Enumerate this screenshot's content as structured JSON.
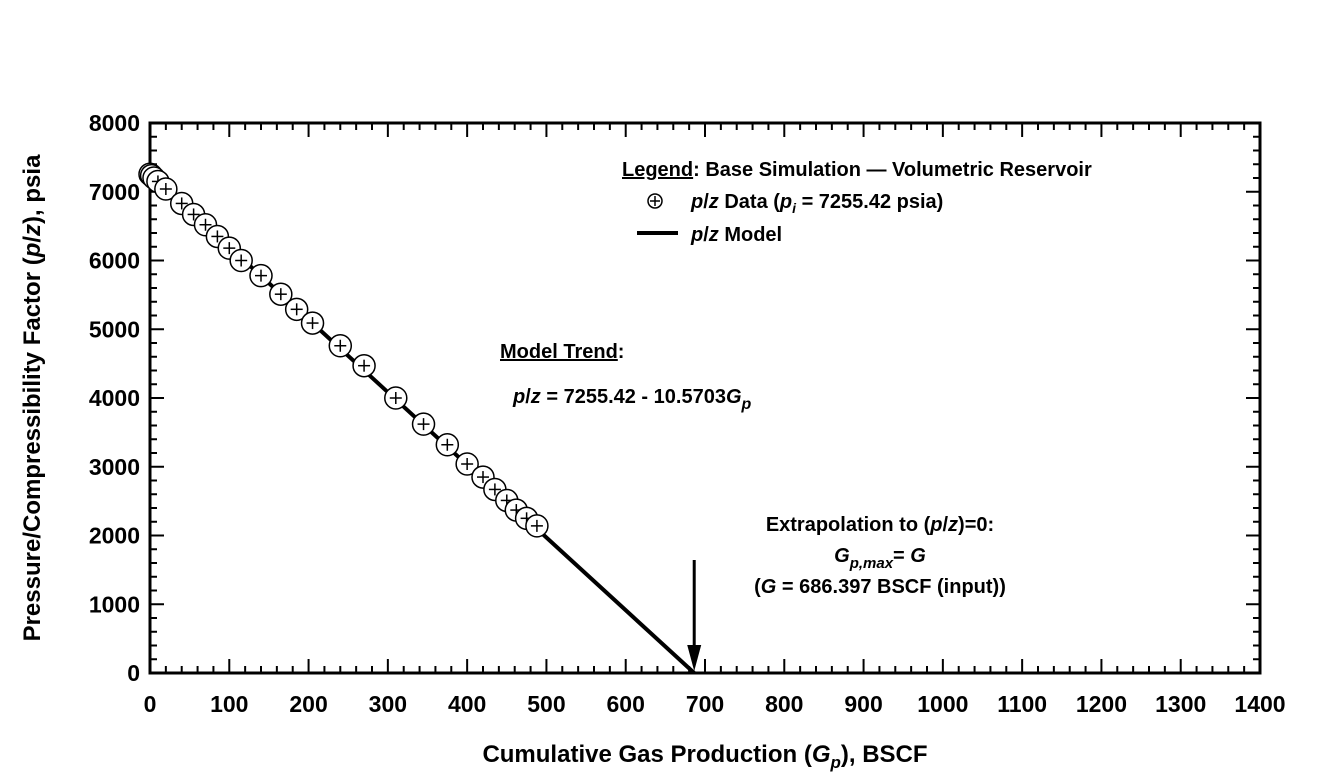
{
  "chart_data": {
    "type": "scatter",
    "xlabel": "Cumulative Gas Production (G_p), BSCF",
    "xlabel_parts": {
      "pre": "Cumulative Gas Production (",
      "var": "G",
      "sub": "p",
      "post": "), BSCF"
    },
    "ylabel": "Pressure/Compressibility Factor (p/z), psia",
    "ylabel_parts": {
      "pre": "Pressure/Compressibility Factor (",
      "var": "p",
      "mid": "/",
      "var2": "z",
      "post": "), psia"
    },
    "xlim": [
      0,
      1400
    ],
    "ylim": [
      0,
      8000
    ],
    "x_ticks": [
      0,
      100,
      200,
      300,
      400,
      500,
      600,
      700,
      800,
      900,
      1000,
      1100,
      1200,
      1300,
      1400
    ],
    "y_ticks": [
      0,
      1000,
      2000,
      3000,
      4000,
      5000,
      6000,
      7000,
      8000
    ],
    "x_tick_labels": [
      "0",
      "100",
      "200",
      "300",
      "400",
      "500",
      "600",
      "700",
      "800",
      "900",
      "1000",
      "1100",
      "1200",
      "1300",
      "1400"
    ],
    "y_tick_labels": [
      "0",
      "1000",
      "2000",
      "3000",
      "4000",
      "5000",
      "6000",
      "7000",
      "8000"
    ],
    "grid": false,
    "legend_position": "top-right",
    "legend": {
      "heading": "Legend",
      "heading_rest": ": Base Simulation — Volumetric Reservoir",
      "data_entry": {
        "var": "p",
        "slash": "/",
        "var2": "z",
        "text": " Data (",
        "pvar": "p",
        "psub": "i",
        "value": " = 7255.42 psia)"
      },
      "model_entry": {
        "var": "p",
        "slash": "/",
        "var2": "z",
        "text": " Model"
      }
    },
    "series": [
      {
        "name": "p/z Data (p_i = 7255.42 psia)",
        "kind": "points",
        "x": [
          0,
          2,
          5,
          10,
          20,
          40,
          55,
          70,
          85,
          100,
          115,
          140,
          165,
          185,
          205,
          240,
          270,
          310,
          345,
          375,
          400,
          420,
          435,
          450,
          462,
          475,
          488
        ],
        "y": [
          7255,
          7235,
          7200,
          7150,
          7040,
          6830,
          6670,
          6520,
          6350,
          6180,
          6000,
          5780,
          5510,
          5290,
          5090,
          4760,
          4470,
          4000,
          3620,
          3320,
          3040,
          2850,
          2670,
          2510,
          2370,
          2250,
          2140
        ]
      },
      {
        "name": "p/z Model",
        "kind": "line",
        "x": [
          0,
          686.397
        ],
        "y": [
          7255.42,
          0
        ]
      }
    ],
    "annotations": {
      "model_trend_heading": "Model Trend",
      "model_trend_colon": ":",
      "model_eq": {
        "var": "p",
        "slash": "/",
        "var2": "z",
        "text": " = 7255.42 -  10.5703",
        "gvar": "G",
        "gsub": "p"
      },
      "extrap_line1": {
        "pre": "Extrapolation to (",
        "var": "p",
        "slash": "/",
        "var2": "z",
        "post": ")=0:"
      },
      "extrap_line2": {
        "var": "G",
        "sub": "p,max",
        "mid": "= ",
        "var2": "G"
      },
      "extrap_line3": {
        "pre": "(",
        "var": "G",
        "post": " = 686.397 BSCF (input))"
      },
      "arrow_target": {
        "x": 686.397,
        "y": 0
      }
    }
  }
}
